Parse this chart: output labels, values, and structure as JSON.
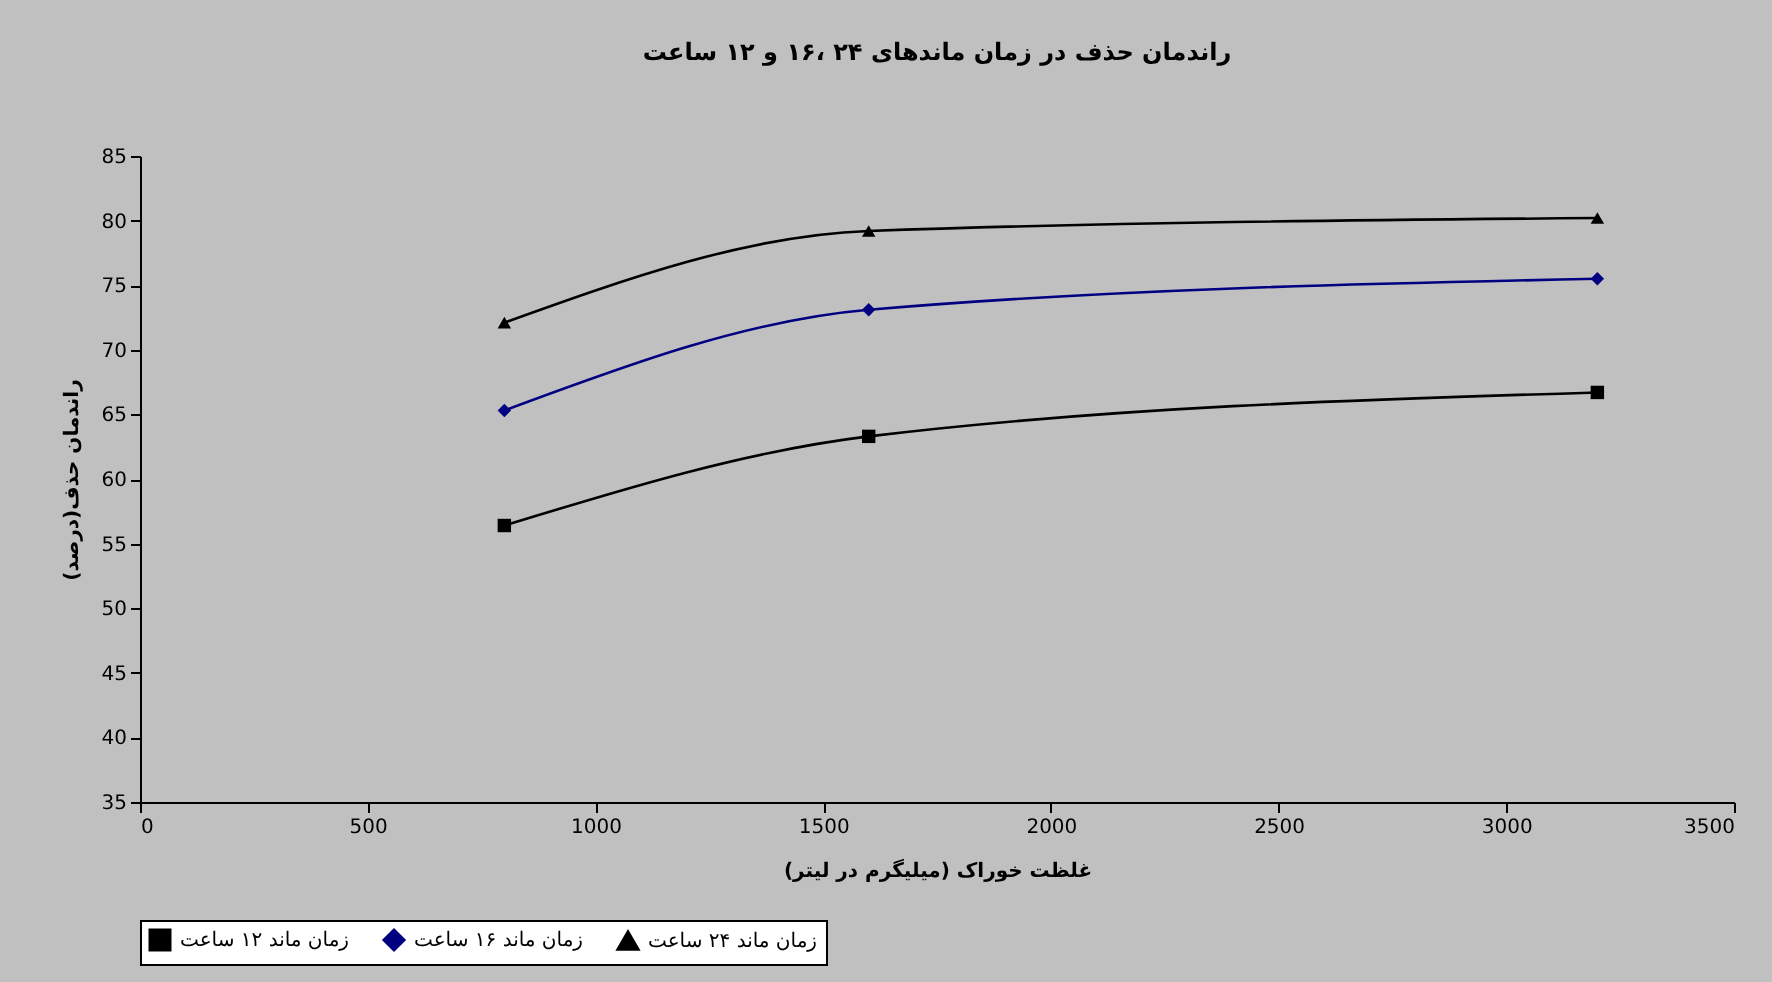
{
  "chart_data": {
    "type": "line",
    "title": "راندمان حذف در زمان ماندهای ۲۴ ،۱۶ و ۱۲ ساعت",
    "xlabel": "غلظت خوراک (میلیگرم در لیتر)",
    "ylabel": "راندمان حذف(درصد)",
    "x": [
      800,
      1600,
      3200
    ],
    "series": [
      {
        "name": "زمان ماند ۱۲ ساعت",
        "color": "#000000",
        "marker": "square",
        "values": [
          56.4,
          63.3,
          66.7
        ]
      },
      {
        "name": "زمان ماند ۱۶ ساعت",
        "color": "#000080",
        "marker": "diamond",
        "values": [
          65.3,
          73.1,
          75.5
        ]
      },
      {
        "name": "زمان ماند ۲۴ ساعت",
        "color": "#000000",
        "marker": "triangle",
        "values": [
          72.1,
          79.2,
          80.2
        ]
      }
    ],
    "xlim": [
      0,
      3500
    ],
    "xticks": [
      0,
      500,
      1000,
      1500,
      2000,
      2500,
      3000,
      3500
    ],
    "ylim": [
      35,
      85
    ],
    "yticks": [
      35,
      40,
      45,
      50,
      55,
      60,
      65,
      70,
      75,
      80,
      85
    ],
    "grid": false,
    "legend": "bottom",
    "line_style": "solid"
  }
}
